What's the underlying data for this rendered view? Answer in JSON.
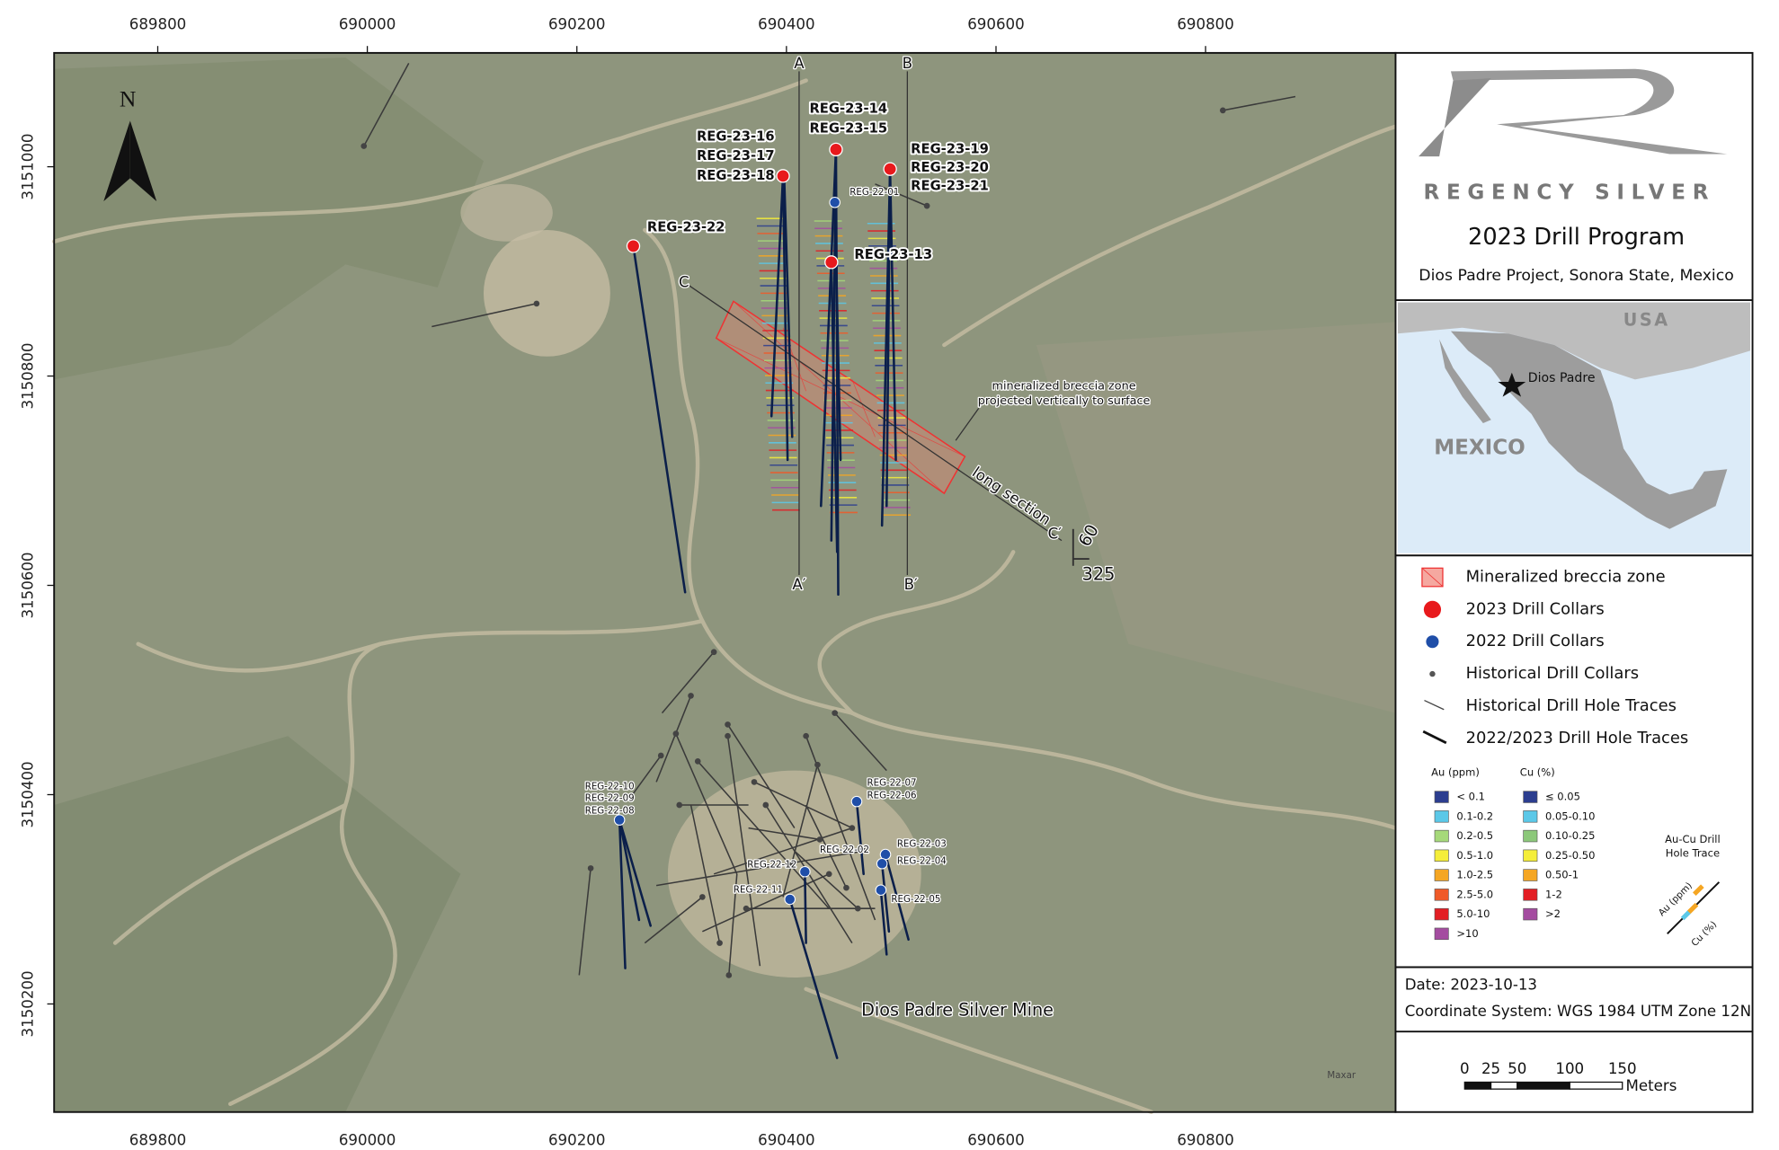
{
  "axes": {
    "x_ticks": [
      689800,
      690000,
      690200,
      690400,
      690600,
      690800
    ],
    "y_ticks": [
      3151000,
      3150800,
      3150600,
      3150400,
      3150200
    ]
  },
  "north_arrow": "N",
  "drill_labels_2023": [
    "REG-23-14",
    "REG-23-15",
    "REG-23-16",
    "REG-23-17",
    "REG-23-18",
    "REG-23-19",
    "REG-23-20",
    "REG-23-21",
    "REG-23-22",
    "REG-23-13"
  ],
  "drill_labels_2022": [
    "REG-22-01",
    "REG-22-10",
    "REG-22-09",
    "REG-22-08",
    "REG-22-07",
    "REG-22-06",
    "REG-22-03",
    "REG-22-04",
    "REG-22-02",
    "REG-22-12",
    "REG-22-11",
    "REG-22-05"
  ],
  "sections": {
    "a": "A",
    "a_prime": "A′",
    "b": "B",
    "b_prime": "B′",
    "c": "C",
    "c_prime": "C′",
    "long_section": "long section",
    "dip": "60",
    "azimuth": "325"
  },
  "annotation": [
    "mineralized breccia zone",
    "projected vertically to surface"
  ],
  "mine_label": "Dios Padre Silver Mine",
  "imagery_credit": "Maxar",
  "title_block": {
    "company": "REGENCY SILVER",
    "title": "2023 Drill Program",
    "subtitle": "Dios Padre Project, Sonora State, Mexico"
  },
  "inset": {
    "usa": "USA",
    "mexico": "MEXICO",
    "site": "Dios Padre"
  },
  "legend": {
    "items": [
      "Mineralized breccia zone",
      "2023 Drill Collars",
      "2022 Drill Collars",
      "Historical Drill Collars",
      "Historical Drill Hole Traces",
      "2022/2023 Drill Hole Traces"
    ],
    "au": {
      "title": "Au (ppm)",
      "classes": [
        {
          "label": "< 0.1",
          "color": "#2c3e8f"
        },
        {
          "label": "0.1-0.2",
          "color": "#5bc8e8"
        },
        {
          "label": "0.2-0.5",
          "color": "#a6d97a"
        },
        {
          "label": "0.5-1.0",
          "color": "#f5ee3a"
        },
        {
          "label": "1.0-2.5",
          "color": "#f5a623"
        },
        {
          "label": "2.5-5.0",
          "color": "#f05a28"
        },
        {
          "label": "5.0-10",
          "color": "#e31e24"
        },
        {
          "label": ">10",
          "color": "#a44ca0"
        }
      ]
    },
    "cu": {
      "title": "Cu (%)",
      "classes": [
        {
          "label": "≤ 0.05",
          "color": "#2c3e8f"
        },
        {
          "label": "0.05-0.10",
          "color": "#5bc8e8"
        },
        {
          "label": "0.10-0.25",
          "color": "#8cc87a"
        },
        {
          "label": "0.25-0.50",
          "color": "#f5ee3a"
        },
        {
          "label": "0.50-1",
          "color": "#f5a623"
        },
        {
          "label": "1-2",
          "color": "#e31e24"
        },
        {
          "label": ">2",
          "color": "#a44ca0"
        }
      ]
    },
    "trace_title": [
      "Au-Cu Drill",
      "Hole Trace"
    ],
    "trace_au": "Au (ppm)",
    "trace_cu": "Cu (%)"
  },
  "footer": {
    "date": "Date: 2023-10-13",
    "coordinate_system": "Coordinate System: WGS 1984 UTM Zone 12N"
  },
  "scale_bar": {
    "labels": [
      0,
      25,
      50,
      100,
      150
    ],
    "unit": "Meters"
  }
}
